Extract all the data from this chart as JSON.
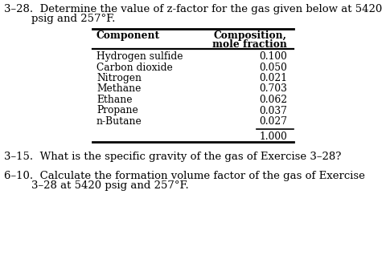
{
  "problem_328_line1": "3–28.  Determine the value of z-factor for the gas given below at 5420",
  "problem_328_line2": "        psig and 257°F.",
  "table_col1_header": "Component",
  "table_col2_header": "Composition,",
  "table_col2_header2": "mole fraction",
  "components": [
    "Hydrogen sulfide",
    "Carbon dioxide",
    "Nitrogen",
    "Methane",
    "Ethane",
    "Propane",
    "n-Butane"
  ],
  "values": [
    "0.100",
    "0.050",
    "0.021",
    "0.703",
    "0.062",
    "0.037",
    "0.027"
  ],
  "total": "1.000",
  "problem_315": "3–15.  What is the specific gravity of the gas of Exercise 3–28?",
  "problem_610_line1": "6–10.  Calculate the formation volume factor of the gas of Exercise",
  "problem_610_line2": "        3–28 at 5420 psig and 257°F.",
  "bg_color": "#ffffff",
  "text_color": "#000000",
  "body_fontsize": 9.5,
  "table_fontsize": 8.8
}
